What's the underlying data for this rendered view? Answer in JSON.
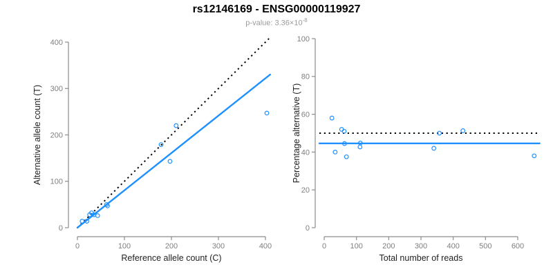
{
  "header": {
    "title": "rs12146169 - ENSG00000119927",
    "subtitle_prefix": "p-value: 3.36×10",
    "subtitle_exponent": "-8"
  },
  "colors": {
    "point_blue": "#1E90FF",
    "fit_line_blue": "#1E90FF",
    "reference_line_black": "#000000",
    "axis_gray": "#8c8c8c",
    "tick_label_gray": "#7f7f7f",
    "axis_title_color": "#1f1f1f",
    "subtitle_gray": "#9a9a9a"
  },
  "chart_data": [
    {
      "id": "allele-counts-scatter",
      "type": "scatter",
      "xlabel": "Reference allele count (C)",
      "ylabel": "Alternative allele count (T)",
      "xlim": [
        0,
        400
      ],
      "ylim": [
        0,
        400
      ],
      "xticks": [
        0,
        100,
        200,
        300,
        400
      ],
      "yticks": [
        0,
        100,
        200,
        300,
        400
      ],
      "grid": false,
      "legend": null,
      "marker": "open-circle",
      "points": [
        [
          10,
          14
        ],
        [
          20,
          14
        ],
        [
          26,
          28
        ],
        [
          30,
          32
        ],
        [
          35,
          28
        ],
        [
          43,
          26
        ],
        [
          62,
          50
        ],
        [
          64,
          47
        ],
        [
          178,
          179
        ],
        [
          197,
          143
        ],
        [
          210,
          220
        ],
        [
          403,
          247
        ]
      ],
      "lines": [
        {
          "name": "identity-line",
          "description": "y = x (50/50 expectation)",
          "style": "dotted",
          "color": "#000000",
          "from": [
            0,
            0
          ],
          "to": [
            410,
            410
          ]
        },
        {
          "name": "fit-line",
          "description": "linear fit, slope 0.805",
          "style": "solid",
          "color": "#1E90FF",
          "from": [
            0,
            0
          ],
          "to": [
            410,
            330
          ]
        }
      ]
    },
    {
      "id": "percentage-scatter",
      "type": "scatter",
      "xlabel": "Total number of reads",
      "ylabel": "Percentage alternative (T)",
      "xlim": [
        0,
        600
      ],
      "ylim": [
        0,
        100
      ],
      "xticks": [
        0,
        100,
        200,
        300,
        400,
        500,
        600
      ],
      "yticks": [
        0,
        20,
        40,
        60,
        80,
        100
      ],
      "grid": false,
      "legend": null,
      "marker": "open-circle",
      "points": [
        [
          24,
          58
        ],
        [
          34,
          40
        ],
        [
          54,
          52
        ],
        [
          62,
          51
        ],
        [
          63,
          44.5
        ],
        [
          69,
          37.5
        ],
        [
          111,
          42.7
        ],
        [
          112,
          44.8
        ],
        [
          340,
          42
        ],
        [
          357,
          50
        ],
        [
          430,
          51.3
        ],
        [
          651,
          38
        ]
      ],
      "lines": [
        {
          "name": "expected-50pct-line",
          "description": "expected 50%",
          "style": "dotted",
          "color": "#000000",
          "from": [
            -15,
            50
          ],
          "to": [
            668,
            50
          ]
        },
        {
          "name": "fitted-percentage-line",
          "description": "fitted mean 44.6%",
          "style": "solid",
          "color": "#1E90FF",
          "from": [
            -15,
            44.6
          ],
          "to": [
            668,
            44.6
          ]
        }
      ]
    }
  ]
}
